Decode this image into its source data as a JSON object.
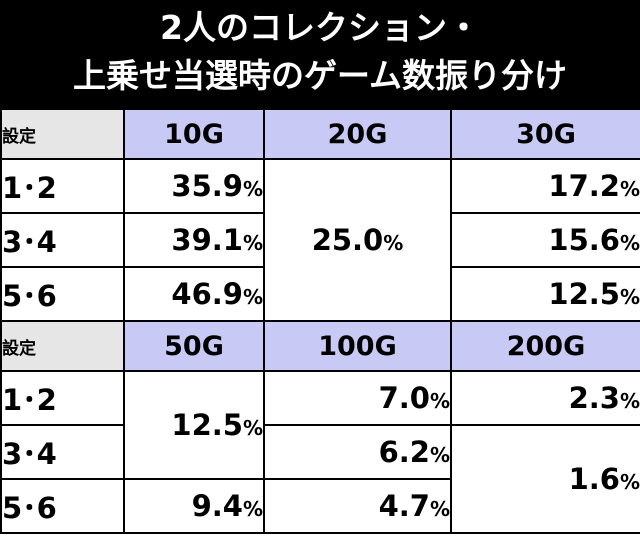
{
  "title": {
    "line1": "2人のコレクション・",
    "line2": "上乗せ当選時のゲーム数振り分け"
  },
  "table1": {
    "setting_label": "設定",
    "columns": [
      "10G",
      "20G",
      "30G"
    ],
    "rows": [
      {
        "label": "1･2",
        "c10": "35.9",
        "c30": "17.2"
      },
      {
        "label": "3･4",
        "c10": "39.1",
        "c30": "15.6"
      },
      {
        "label": "5･6",
        "c10": "46.9",
        "c30": "12.5"
      }
    ],
    "c20_merged": "25.0"
  },
  "table2": {
    "setting_label": "設定",
    "columns": [
      "50G",
      "100G",
      "200G"
    ],
    "rows": [
      {
        "label": "1･2",
        "c100": "7.0",
        "c200": "2.3"
      },
      {
        "label": "3･4",
        "c100": "6.2"
      },
      {
        "label": "5･6",
        "c50": "9.4",
        "c100": "4.7"
      }
    ],
    "c50_merged_12_34": "12.5",
    "c200_merged_34_56": "1.6"
  },
  "percent_sign": "%",
  "colors": {
    "title_bg": "#000000",
    "title_text": "#ffffff",
    "header_bg": "#c9c9f5",
    "setting_bg": "#e6e6e6"
  }
}
